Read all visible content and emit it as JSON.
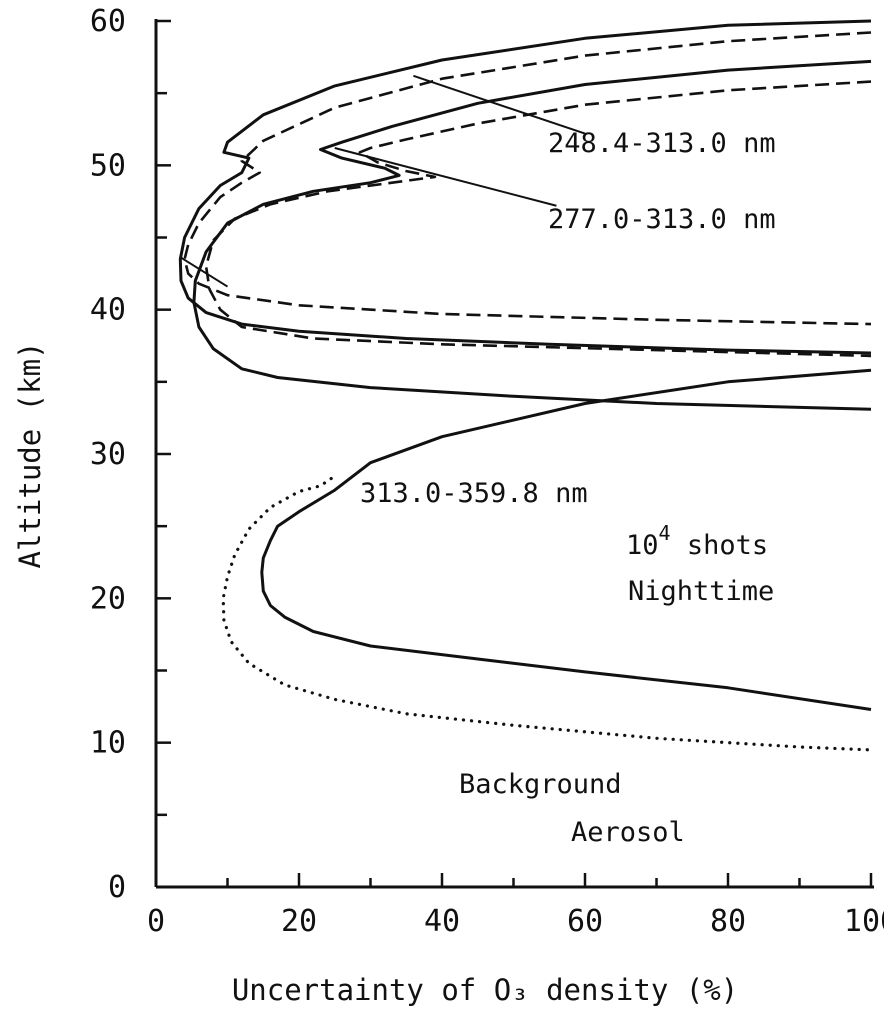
{
  "chart_data": {
    "type": "line",
    "xlabel": "Uncertainty of O₃ density (%)",
    "ylabel": "Altitude (km)",
    "xlim": [
      0,
      100
    ],
    "ylim": [
      0,
      60
    ],
    "xticks": [
      0,
      20,
      40,
      60,
      80,
      100
    ],
    "yticks": [
      0,
      10,
      20,
      30,
      40,
      50,
      60
    ],
    "grid": false,
    "legend": "none",
    "annotations": {
      "wl1": "248.4-313.0 nm",
      "wl2": "277.0-313.0 nm",
      "wl3": "313.0-359.8 nm",
      "shots_base": "10",
      "shots_exp": "4",
      "shots_rest": " shots",
      "night": "Nighttime",
      "aerosol1": "Background",
      "aerosol2": "Aerosol"
    },
    "series": [
      {
        "label": "248.4-313.0 nm",
        "style": "solid",
        "points": [
          [
            100,
            60
          ],
          [
            80,
            59.7
          ],
          [
            60,
            58.8
          ],
          [
            40,
            57.3
          ],
          [
            25,
            55.5
          ],
          [
            15,
            53.5
          ],
          [
            10,
            51.6
          ],
          [
            9.5,
            50.9
          ],
          [
            13,
            50.5
          ],
          [
            12,
            49.5
          ],
          [
            9,
            48.6
          ],
          [
            6,
            47
          ],
          [
            4,
            45
          ],
          [
            3.4,
            43.5
          ],
          [
            3.5,
            42
          ],
          [
            4.5,
            40.8
          ],
          [
            7,
            39.8
          ],
          [
            12,
            39
          ],
          [
            20,
            38.5
          ],
          [
            35,
            38
          ],
          [
            55,
            37.6
          ],
          [
            80,
            37.2
          ],
          [
            100,
            37
          ]
        ]
      },
      {
        "label": "248.4-313.0 nm",
        "style": "dashed",
        "points": [
          [
            100,
            59.2
          ],
          [
            80,
            58.6
          ],
          [
            60,
            57.6
          ],
          [
            40,
            56
          ],
          [
            25,
            54
          ],
          [
            15,
            51.7
          ],
          [
            12,
            50.3
          ],
          [
            14.5,
            49.5
          ],
          [
            12,
            48.8
          ],
          [
            9,
            47.8
          ],
          [
            6,
            46
          ],
          [
            4.5,
            44.5
          ],
          [
            4,
            43.5
          ],
          [
            4.5,
            42.5
          ],
          [
            6,
            41.8
          ],
          [
            10,
            41
          ],
          [
            20,
            40.3
          ],
          [
            40,
            39.7
          ],
          [
            70,
            39.3
          ],
          [
            100,
            39
          ]
        ]
      },
      {
        "label": "277.0-313.0 nm",
        "style": "solid",
        "points": [
          [
            100,
            57.2
          ],
          [
            80,
            56.6
          ],
          [
            60,
            55.6
          ],
          [
            45,
            54.3
          ],
          [
            33,
            52.7
          ],
          [
            26,
            51.6
          ],
          [
            23,
            51.1
          ],
          [
            26,
            50.5
          ],
          [
            32,
            49.8
          ],
          [
            34,
            49.3
          ],
          [
            30,
            48.8
          ],
          [
            22,
            48.2
          ],
          [
            15,
            47.3
          ],
          [
            10,
            46
          ],
          [
            7,
            44
          ],
          [
            5.5,
            42
          ],
          [
            5.3,
            40.5
          ],
          [
            6,
            38.8
          ],
          [
            8,
            37.3
          ],
          [
            12,
            35.9
          ],
          [
            17,
            35.3
          ],
          [
            30,
            34.6
          ],
          [
            50,
            34
          ],
          [
            70,
            33.5
          ],
          [
            100,
            33.1
          ]
        ]
      },
      {
        "label": "277.0-313.0 nm",
        "style": "dashed",
        "points": [
          [
            100,
            55.8
          ],
          [
            80,
            55.2
          ],
          [
            60,
            54.2
          ],
          [
            45,
            52.9
          ],
          [
            35,
            51.8
          ],
          [
            30,
            51.2
          ],
          [
            28.5,
            50.9
          ],
          [
            31,
            50.2
          ],
          [
            35,
            49.6
          ],
          [
            39,
            49.2
          ],
          [
            33,
            48.8
          ],
          [
            24,
            48.2
          ],
          [
            16,
            47.3
          ],
          [
            11,
            46.3
          ],
          [
            8,
            44.8
          ],
          [
            7,
            43
          ],
          [
            7.5,
            41.4
          ],
          [
            9,
            40
          ],
          [
            12,
            38.8
          ],
          [
            22,
            38
          ],
          [
            40,
            37.6
          ],
          [
            70,
            37.2
          ],
          [
            100,
            36.8
          ]
        ]
      },
      {
        "label": "313.0-359.8 nm",
        "style": "solid",
        "points": [
          [
            100,
            35.8
          ],
          [
            80,
            35
          ],
          [
            60,
            33.5
          ],
          [
            40,
            31.2
          ],
          [
            30,
            29.4
          ],
          [
            25,
            27.5
          ],
          [
            20,
            26
          ],
          [
            17,
            25
          ],
          [
            16,
            24
          ],
          [
            15,
            22.8
          ],
          [
            14.8,
            21.8
          ],
          [
            15,
            20.5
          ],
          [
            16,
            19.5
          ],
          [
            18,
            18.7
          ],
          [
            22,
            17.7
          ],
          [
            30,
            16.7
          ],
          [
            45,
            15.8
          ],
          [
            60,
            14.9
          ],
          [
            80,
            13.8
          ],
          [
            100,
            12.3
          ]
        ]
      },
      {
        "label": "Background Aerosol",
        "style": "dotted",
        "points": [
          [
            24.5,
            28.3
          ],
          [
            23,
            27.8
          ],
          [
            20,
            27.4
          ],
          [
            16,
            26.3
          ],
          [
            13,
            24.8
          ],
          [
            11,
            23
          ],
          [
            10,
            21.5
          ],
          [
            9.4,
            20
          ],
          [
            9.5,
            18.5
          ],
          [
            10.5,
            17
          ],
          [
            13,
            15.5
          ],
          [
            18,
            14
          ],
          [
            25,
            13
          ],
          [
            35,
            12
          ],
          [
            50,
            11.2
          ],
          [
            70,
            10.3
          ],
          [
            90,
            9.7
          ],
          [
            100,
            9.5
          ]
        ]
      }
    ]
  }
}
